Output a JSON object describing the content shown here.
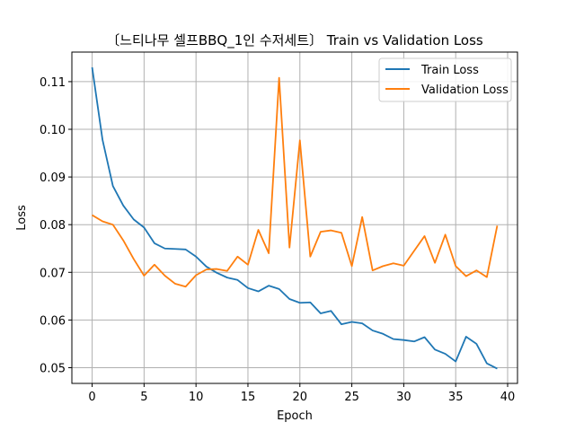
{
  "chart_data": {
    "type": "line",
    "title": "〔느티나무 셀프BBQ_1인 수저세트〕 Train vs Validation Loss",
    "xlabel": "Epoch",
    "ylabel": "Loss",
    "xlim": [
      -1.95,
      40.95
    ],
    "ylim": [
      0.0467,
      0.1162
    ],
    "xticks": [
      0,
      5,
      10,
      15,
      20,
      25,
      30,
      35,
      40
    ],
    "yticks": [
      0.05,
      0.06,
      0.07,
      0.08,
      0.09,
      0.1,
      0.11
    ],
    "ytick_labels": [
      "0.05",
      "0.06",
      "0.07",
      "0.08",
      "0.09",
      "0.10",
      "0.11"
    ],
    "grid": true,
    "legend_position": "top-right",
    "x": [
      0,
      1,
      2,
      3,
      4,
      5,
      6,
      7,
      8,
      9,
      10,
      11,
      12,
      13,
      14,
      15,
      16,
      17,
      18,
      19,
      20,
      21,
      22,
      23,
      24,
      25,
      26,
      27,
      28,
      29,
      30,
      31,
      32,
      33,
      34,
      35,
      36,
      37,
      38,
      39
    ],
    "series": [
      {
        "name": "Train Loss",
        "color": "#1f77b4",
        "values": [
          0.113,
          0.0978,
          0.0881,
          0.084,
          0.0811,
          0.0794,
          0.0761,
          0.075,
          0.0749,
          0.0748,
          0.0733,
          0.0712,
          0.0699,
          0.0689,
          0.0684,
          0.0667,
          0.066,
          0.0672,
          0.0665,
          0.0644,
          0.0636,
          0.0637,
          0.0614,
          0.0619,
          0.0591,
          0.0596,
          0.0593,
          0.0578,
          0.0571,
          0.056,
          0.0558,
          0.0555,
          0.0564,
          0.0538,
          0.0529,
          0.0513,
          0.0565,
          0.055,
          0.0509,
          0.0498
        ]
      },
      {
        "name": "Validation Loss",
        "color": "#ff7f0e",
        "values": [
          0.082,
          0.0807,
          0.08,
          0.0767,
          0.0728,
          0.0693,
          0.0716,
          0.0693,
          0.0676,
          0.067,
          0.0694,
          0.0706,
          0.0707,
          0.0703,
          0.0733,
          0.0716,
          0.0789,
          0.074,
          0.1108,
          0.0752,
          0.0977,
          0.0733,
          0.0785,
          0.0788,
          0.0783,
          0.0713,
          0.0816,
          0.0704,
          0.0713,
          0.0719,
          0.0714,
          0.0745,
          0.0776,
          0.072,
          0.0779,
          0.0713,
          0.0692,
          0.0704,
          0.069,
          0.0798
        ]
      }
    ]
  }
}
